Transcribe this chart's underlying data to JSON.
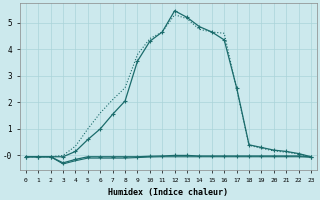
{
  "xlabel": "Humidex (Indice chaleur)",
  "background_color": "#cce9ed",
  "grid_color": "#aad4d9",
  "line_color": "#1a6b6b",
  "xlim": [
    -0.5,
    23.5
  ],
  "ylim": [
    -0.55,
    5.75
  ],
  "xticks": [
    0,
    1,
    2,
    3,
    4,
    5,
    6,
    7,
    8,
    9,
    10,
    11,
    12,
    13,
    14,
    15,
    16,
    17,
    18,
    19,
    20,
    21,
    22,
    23
  ],
  "yticks": [
    0,
    1,
    2,
    3,
    4,
    5
  ],
  "ytick_labels": [
    "-0",
    "1",
    "2",
    "3",
    "4",
    "5"
  ],
  "series": [
    {
      "x": [
        0,
        1,
        2,
        3,
        4,
        5,
        6,
        7,
        8,
        9,
        10,
        11,
        12,
        13,
        14,
        15,
        16,
        17,
        18,
        19,
        20,
        21,
        22,
        23
      ],
      "y": [
        -0.05,
        -0.05,
        -0.05,
        -0.05,
        0.15,
        0.6,
        1.0,
        1.55,
        2.05,
        3.55,
        4.3,
        4.65,
        5.45,
        5.2,
        4.85,
        4.65,
        4.35,
        2.55,
        0.4,
        0.3,
        0.2,
        0.15,
        0.07,
        -0.05
      ],
      "marker": true,
      "linestyle": "solid"
    },
    {
      "x": [
        0,
        1,
        2,
        3,
        4,
        5,
        6,
        7,
        8,
        9,
        10,
        11,
        12,
        13,
        14,
        15,
        16,
        17,
        18,
        19,
        20,
        21,
        22,
        23
      ],
      "y": [
        -0.05,
        -0.05,
        -0.05,
        0.0,
        0.35,
        1.0,
        1.6,
        2.1,
        2.55,
        3.8,
        4.4,
        4.65,
        5.3,
        5.15,
        4.75,
        4.65,
        4.6,
        2.5,
        0.38,
        0.27,
        0.17,
        0.12,
        0.05,
        -0.05
      ],
      "marker": false,
      "linestyle": "dotted"
    },
    {
      "x": [
        0,
        1,
        2,
        3,
        4,
        5,
        6,
        7,
        8,
        9,
        10,
        11,
        12,
        13,
        14,
        15,
        16,
        17,
        18,
        19,
        20,
        21,
        22,
        23
      ],
      "y": [
        -0.05,
        -0.05,
        -0.05,
        -0.28,
        -0.15,
        -0.05,
        -0.05,
        -0.05,
        -0.05,
        -0.05,
        -0.03,
        -0.02,
        0.0,
        0.0,
        -0.02,
        -0.02,
        -0.02,
        -0.02,
        -0.02,
        -0.02,
        -0.02,
        -0.02,
        -0.02,
        -0.05
      ],
      "marker": true,
      "linestyle": "solid"
    },
    {
      "x": [
        0,
        1,
        2,
        3,
        4,
        5,
        6,
        7,
        8,
        9,
        10,
        11,
        12,
        13,
        14,
        15,
        16,
        17,
        18,
        19,
        20,
        21,
        22,
        23
      ],
      "y": [
        -0.05,
        -0.05,
        -0.05,
        -0.32,
        -0.2,
        -0.1,
        -0.1,
        -0.1,
        -0.1,
        -0.08,
        -0.06,
        -0.05,
        -0.05,
        -0.05,
        -0.05,
        -0.05,
        -0.05,
        -0.05,
        -0.05,
        -0.05,
        -0.05,
        -0.05,
        -0.05,
        -0.07
      ],
      "marker": false,
      "linestyle": "solid"
    }
  ]
}
